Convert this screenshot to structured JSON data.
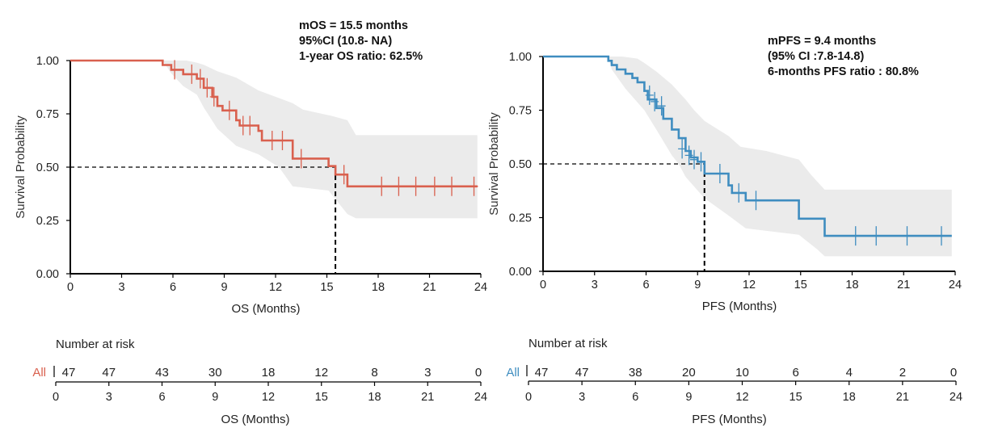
{
  "chart_data": [
    {
      "type": "line",
      "subtype": "kaplan-meier",
      "id": "os",
      "color": "#d9604e",
      "ci_color": "#ebebeb",
      "ylabel": "Survival Probability",
      "xlabel": "OS (Months)",
      "xlim": [
        0,
        24
      ],
      "ylim": [
        0,
        1
      ],
      "x_ticks": [
        "0",
        "3",
        "6",
        "9",
        "12",
        "15",
        "18",
        "21",
        "24"
      ],
      "y_ticks": [
        "0.00",
        "0.25",
        "0.50",
        "0.75",
        "1.00"
      ],
      "annotations": [
        "mOS = 15.5 months",
        "95%CI (10.8- NA)",
        "1-year OS ratio: 62.5%"
      ],
      "median": 15.5,
      "median_level": 0.5,
      "curve": [
        [
          0,
          1.0
        ],
        [
          5.4,
          1.0
        ],
        [
          5.4,
          0.979
        ],
        [
          5.9,
          0.979
        ],
        [
          5.9,
          0.957
        ],
        [
          6.6,
          0.957
        ],
        [
          6.6,
          0.936
        ],
        [
          7.4,
          0.936
        ],
        [
          7.4,
          0.915
        ],
        [
          7.8,
          0.915
        ],
        [
          7.8,
          0.872
        ],
        [
          8.3,
          0.872
        ],
        [
          8.3,
          0.83
        ],
        [
          8.6,
          0.83
        ],
        [
          8.6,
          0.787
        ],
        [
          8.9,
          0.787
        ],
        [
          8.9,
          0.766
        ],
        [
          9.7,
          0.766
        ],
        [
          9.7,
          0.72
        ],
        [
          9.9,
          0.72
        ],
        [
          9.9,
          0.695
        ],
        [
          11.0,
          0.695
        ],
        [
          11.0,
          0.67
        ],
        [
          11.2,
          0.67
        ],
        [
          11.2,
          0.625
        ],
        [
          13.0,
          0.625
        ],
        [
          13.0,
          0.54
        ],
        [
          15.1,
          0.54
        ],
        [
          15.1,
          0.505
        ],
        [
          15.5,
          0.505
        ],
        [
          15.5,
          0.465
        ],
        [
          16.2,
          0.465
        ],
        [
          16.2,
          0.41
        ],
        [
          23.8,
          0.41
        ]
      ],
      "ci_upper": [
        [
          0,
          1.0
        ],
        [
          5.4,
          1.0
        ],
        [
          5.9,
          1.0
        ],
        [
          6.8,
          1.0
        ],
        [
          7.4,
          0.99
        ],
        [
          7.8,
          0.98
        ],
        [
          8.6,
          0.95
        ],
        [
          9.7,
          0.92
        ],
        [
          11.0,
          0.86
        ],
        [
          13.0,
          0.8
        ],
        [
          13.6,
          0.77
        ],
        [
          15.3,
          0.74
        ],
        [
          16.2,
          0.72
        ],
        [
          16.7,
          0.65
        ],
        [
          23.8,
          0.65
        ]
      ],
      "ci_lower": [
        [
          0,
          1.0
        ],
        [
          5.4,
          1.0
        ],
        [
          5.9,
          0.94
        ],
        [
          6.6,
          0.88
        ],
        [
          7.4,
          0.84
        ],
        [
          7.8,
          0.78
        ],
        [
          8.6,
          0.68
        ],
        [
          9.7,
          0.6
        ],
        [
          11.0,
          0.56
        ],
        [
          12.2,
          0.5
        ],
        [
          13.0,
          0.41
        ],
        [
          15.1,
          0.39
        ],
        [
          15.5,
          0.35
        ],
        [
          16.2,
          0.28
        ],
        [
          16.7,
          0.26
        ],
        [
          23.8,
          0.26
        ]
      ],
      "censor": [
        [
          6.1,
          0.957
        ],
        [
          7.1,
          0.936
        ],
        [
          7.6,
          0.915
        ],
        [
          8.0,
          0.872
        ],
        [
          8.4,
          0.83
        ],
        [
          9.3,
          0.766
        ],
        [
          10.1,
          0.695
        ],
        [
          10.5,
          0.695
        ],
        [
          11.8,
          0.625
        ],
        [
          12.4,
          0.625
        ],
        [
          13.5,
          0.54
        ],
        [
          16.0,
          0.465
        ],
        [
          18.2,
          0.41
        ],
        [
          19.2,
          0.41
        ],
        [
          20.2,
          0.41
        ],
        [
          21.3,
          0.41
        ],
        [
          22.3,
          0.41
        ],
        [
          23.6,
          0.41
        ]
      ],
      "risk": {
        "title": "Number at risk",
        "group": "All",
        "counts": [
          "47",
          "47",
          "43",
          "30",
          "18",
          "12",
          "8",
          "3",
          "0"
        ],
        "x_ticks": [
          "0",
          "3",
          "6",
          "9",
          "12",
          "15",
          "18",
          "21",
          "24"
        ],
        "xlabel": "OS (Months)"
      }
    },
    {
      "type": "line",
      "subtype": "kaplan-meier",
      "id": "pfs",
      "color": "#3f8dc0",
      "ci_color": "#ebebeb",
      "ylabel": "Survival Probability",
      "xlabel": "PFS (Months)",
      "xlim": [
        0,
        24
      ],
      "ylim": [
        0,
        1
      ],
      "x_ticks": [
        "0",
        "3",
        "6",
        "9",
        "12",
        "15",
        "18",
        "21",
        "24"
      ],
      "y_ticks": [
        "0.00",
        "0.25",
        "0.50",
        "0.75",
        "1.00"
      ],
      "annotations": [
        "mPFS = 9.4 months",
        "(95% CI :7.8-14.8)",
        "6-months PFS ratio : 80.8%"
      ],
      "median": 9.4,
      "median_level": 0.5,
      "curve": [
        [
          0,
          1.0
        ],
        [
          3.8,
          1.0
        ],
        [
          3.8,
          0.98
        ],
        [
          4.0,
          0.98
        ],
        [
          4.0,
          0.96
        ],
        [
          4.3,
          0.96
        ],
        [
          4.3,
          0.94
        ],
        [
          4.8,
          0.94
        ],
        [
          4.8,
          0.92
        ],
        [
          5.2,
          0.92
        ],
        [
          5.2,
          0.9
        ],
        [
          5.5,
          0.9
        ],
        [
          5.5,
          0.88
        ],
        [
          5.9,
          0.88
        ],
        [
          5.9,
          0.84
        ],
        [
          6.1,
          0.84
        ],
        [
          6.1,
          0.8
        ],
        [
          6.6,
          0.8
        ],
        [
          6.6,
          0.76
        ],
        [
          7.0,
          0.76
        ],
        [
          7.0,
          0.71
        ],
        [
          7.5,
          0.71
        ],
        [
          7.5,
          0.66
        ],
        [
          7.9,
          0.66
        ],
        [
          7.9,
          0.62
        ],
        [
          8.3,
          0.62
        ],
        [
          8.3,
          0.56
        ],
        [
          8.6,
          0.56
        ],
        [
          8.6,
          0.53
        ],
        [
          9.0,
          0.53
        ],
        [
          9.0,
          0.51
        ],
        [
          9.4,
          0.51
        ],
        [
          9.4,
          0.455
        ],
        [
          10.8,
          0.455
        ],
        [
          10.8,
          0.4
        ],
        [
          11.0,
          0.4
        ],
        [
          11.0,
          0.365
        ],
        [
          11.8,
          0.365
        ],
        [
          11.8,
          0.33
        ],
        [
          14.9,
          0.33
        ],
        [
          14.9,
          0.245
        ],
        [
          16.4,
          0.245
        ],
        [
          16.4,
          0.165
        ],
        [
          23.8,
          0.165
        ]
      ],
      "ci_upper": [
        [
          0,
          1.0
        ],
        [
          3.8,
          1.0
        ],
        [
          4.6,
          1.0
        ],
        [
          5.5,
          0.99
        ],
        [
          5.9,
          0.97
        ],
        [
          6.6,
          0.93
        ],
        [
          7.5,
          0.87
        ],
        [
          8.3,
          0.8
        ],
        [
          8.8,
          0.75
        ],
        [
          9.4,
          0.7
        ],
        [
          10.0,
          0.67
        ],
        [
          10.8,
          0.63
        ],
        [
          11.5,
          0.58
        ],
        [
          13.0,
          0.56
        ],
        [
          14.9,
          0.52
        ],
        [
          15.6,
          0.45
        ],
        [
          16.4,
          0.38
        ],
        [
          23.8,
          0.38
        ]
      ],
      "ci_lower": [
        [
          0,
          1.0
        ],
        [
          3.8,
          1.0
        ],
        [
          4.0,
          0.94
        ],
        [
          4.8,
          0.85
        ],
        [
          5.9,
          0.75
        ],
        [
          6.6,
          0.66
        ],
        [
          7.5,
          0.54
        ],
        [
          7.9,
          0.5
        ],
        [
          8.3,
          0.44
        ],
        [
          9.4,
          0.34
        ],
        [
          10.8,
          0.26
        ],
        [
          11.8,
          0.2
        ],
        [
          14.9,
          0.17
        ],
        [
          16.0,
          0.1
        ],
        [
          16.4,
          0.07
        ],
        [
          23.8,
          0.07
        ]
      ],
      "censor": [
        [
          6.2,
          0.82
        ],
        [
          6.5,
          0.79
        ],
        [
          6.9,
          0.77
        ],
        [
          8.1,
          0.57
        ],
        [
          8.5,
          0.54
        ],
        [
          8.8,
          0.52
        ],
        [
          9.2,
          0.51
        ],
        [
          10.3,
          0.455
        ],
        [
          11.4,
          0.365
        ],
        [
          12.4,
          0.33
        ],
        [
          18.2,
          0.165
        ],
        [
          19.4,
          0.165
        ],
        [
          21.2,
          0.165
        ],
        [
          23.2,
          0.165
        ]
      ],
      "risk": {
        "title": "Number at risk",
        "group": "All",
        "counts": [
          "47",
          "47",
          "38",
          "20",
          "10",
          "6",
          "4",
          "2",
          "0"
        ],
        "x_ticks": [
          "0",
          "3",
          "6",
          "9",
          "12",
          "15",
          "18",
          "21",
          "24"
        ],
        "xlabel": "PFS (Months)"
      }
    }
  ]
}
